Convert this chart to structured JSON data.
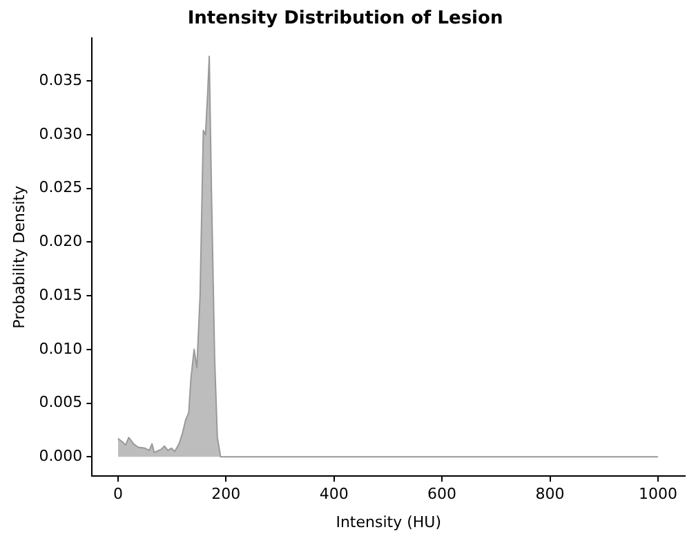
{
  "chart_data": {
    "type": "area",
    "title": "Intensity Distribution of Lesion",
    "xlabel": "Intensity (HU)",
    "ylabel": "Probability Density",
    "series": [
      {
        "color": "#bdbdbd",
        "x": [
          0,
          8,
          14,
          20,
          29,
          37,
          50,
          58,
          63,
          67,
          80,
          86,
          92,
          99,
          105,
          113,
          120,
          125,
          131,
          135,
          141,
          146,
          152,
          158,
          162,
          166,
          169,
          173,
          179,
          184,
          190,
          300,
          500,
          700,
          900,
          1000
        ],
        "values": [
          0.0017,
          0.0014,
          0.0011,
          0.0018,
          0.0012,
          0.0009,
          0.0008,
          0.0006,
          0.0012,
          0.0004,
          0.0007,
          0.001,
          0.0006,
          0.0008,
          0.0005,
          0.0012,
          0.0023,
          0.0034,
          0.0041,
          0.0073,
          0.01,
          0.0083,
          0.015,
          0.0304,
          0.03,
          0.0338,
          0.0373,
          0.0249,
          0.0091,
          0.0018,
          0,
          0,
          0,
          0,
          0,
          0
        ]
      }
    ],
    "xlim": [
      -48,
      1050
    ],
    "xticks": [
      0,
      200,
      400,
      600,
      800,
      1000
    ],
    "ylim": [
      -0.0018,
      0.039
    ],
    "yticks": [
      {
        "value": 0,
        "label": "0.000"
      },
      {
        "value": 0.005,
        "label": "0.005"
      },
      {
        "value": 0.01,
        "label": "0.010"
      },
      {
        "value": 0.015,
        "label": "0.015"
      },
      {
        "value": 0.02,
        "label": "0.020"
      },
      {
        "value": 0.025,
        "label": "0.025"
      },
      {
        "value": 0.03,
        "label": "0.030"
      },
      {
        "value": 0.035,
        "label": "0.035"
      }
    ],
    "grid": false,
    "legend": false
  }
}
